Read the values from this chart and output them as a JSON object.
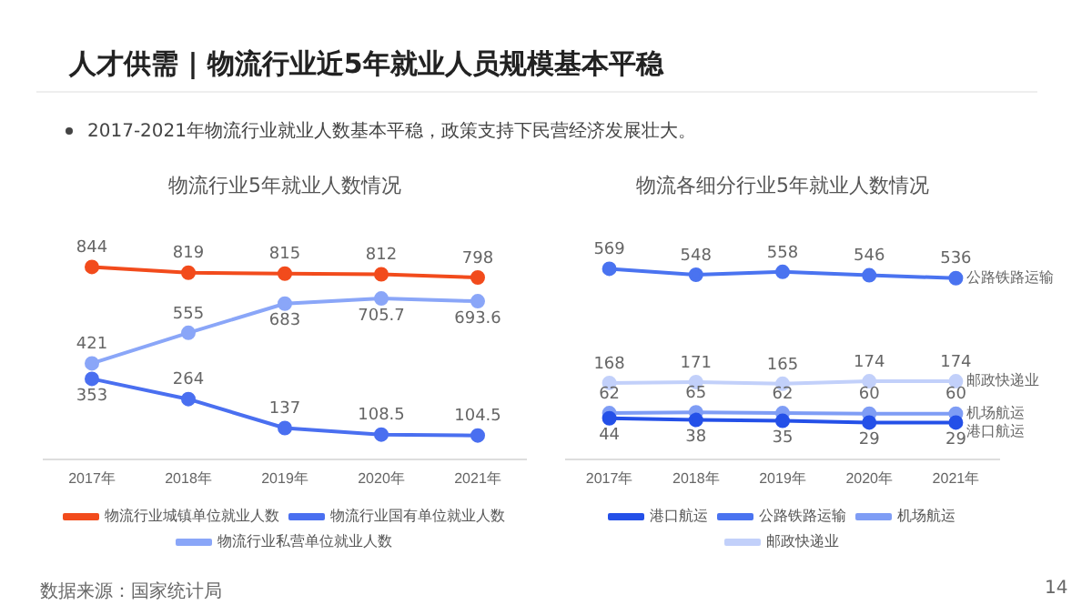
{
  "chart_data": [
    {
      "type": "other",
      "title": "人才供需 | 物流行业近5年就业人员规模基本平稳",
      "annotations": [
        "2017-2021年物流行业就业人数基本平稳，政策支持下民营经济发展壮大。",
        "数据来源：国家统计局",
        "14"
      ]
    },
    {
      "type": "line",
      "title": "物流行业5年就业人数情况",
      "categories": [
        "2017年",
        "2018年",
        "2019年",
        "2020年",
        "2021年"
      ],
      "series": [
        {
          "name": "物流行业城镇单位就业人数",
          "color": "#f24b1c",
          "values": [
            844,
            819,
            815,
            812,
            798
          ]
        },
        {
          "name": "物流行业国有单位就业人数",
          "color": "#4a6ff0",
          "values": [
            353,
            264,
            137,
            108.5,
            104.5
          ]
        },
        {
          "name": "物流行业私营单位就业人数",
          "color": "#8aa6f8",
          "values": [
            421,
            555,
            683,
            705.7,
            693.6
          ]
        }
      ],
      "data_labels": true,
      "marker": "circle",
      "legend": "bottom",
      "grid": false
    },
    {
      "type": "line",
      "title": "物流各细分行业5年就业人数情况",
      "categories": [
        "2017年",
        "2018年",
        "2019年",
        "2020年",
        "2021年"
      ],
      "series": [
        {
          "name": "港口航运",
          "color": "#2450e8",
          "values": [
            44,
            38,
            35,
            29,
            29
          ]
        },
        {
          "name": "公路铁路运输",
          "color": "#4a73f0",
          "values": [
            569,
            548,
            558,
            546,
            536
          ]
        },
        {
          "name": "机场航运",
          "color": "#7f9df5",
          "values": [
            62,
            65,
            62,
            60,
            60
          ]
        },
        {
          "name": "邮政快递业",
          "color": "#c2d0fa",
          "values": [
            168,
            171,
            165,
            174,
            174
          ]
        }
      ],
      "data_labels": true,
      "marker": "circle",
      "legend": "bottom",
      "grid": false
    }
  ]
}
